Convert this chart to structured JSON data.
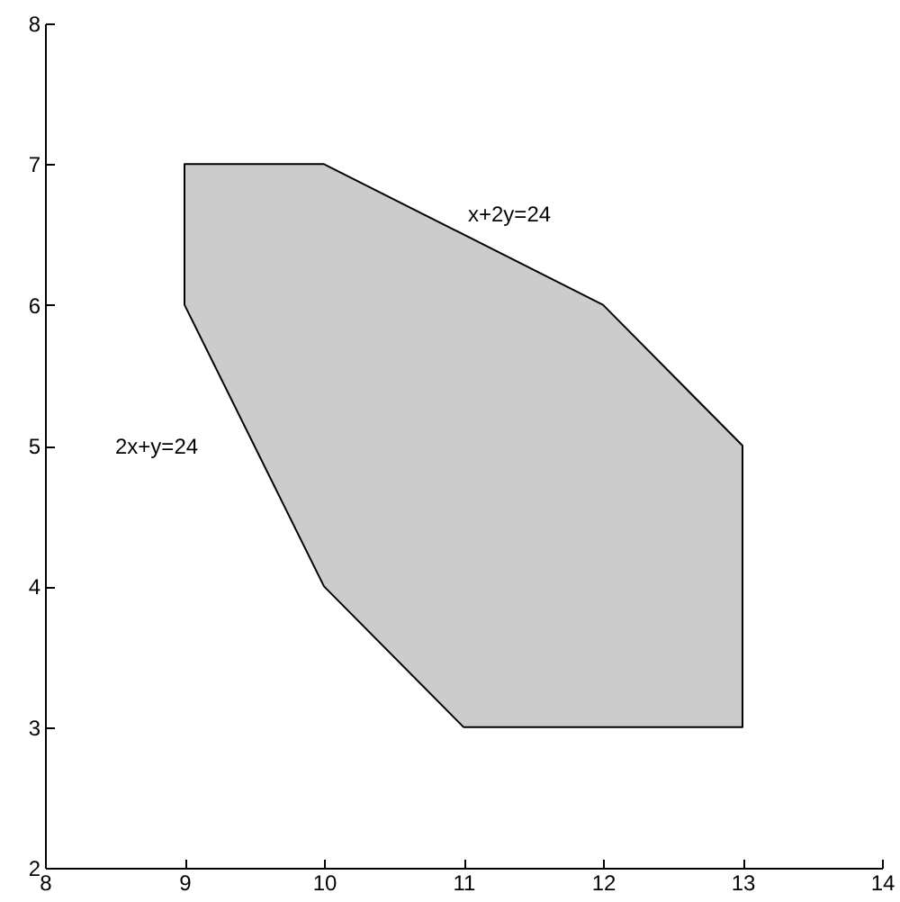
{
  "chart_data": {
    "type": "area",
    "series": [
      {
        "color": "#cccccc",
        "x": [
          9,
          9,
          10,
          12,
          13,
          13,
          11,
          10,
          9
        ],
        "values": [
          6,
          7,
          7,
          6,
          5,
          3,
          3,
          4,
          6
        ]
      }
    ],
    "xlim": [
      8,
      14
    ],
    "xticks": [
      8,
      9,
      10,
      11,
      12,
      13,
      14
    ],
    "ylim": [
      2,
      8
    ],
    "yticks": [
      2,
      3,
      4,
      5,
      6,
      7,
      8
    ],
    "grid": false,
    "annotations": [
      "x+2y=24",
      "2x+y=24"
    ]
  }
}
